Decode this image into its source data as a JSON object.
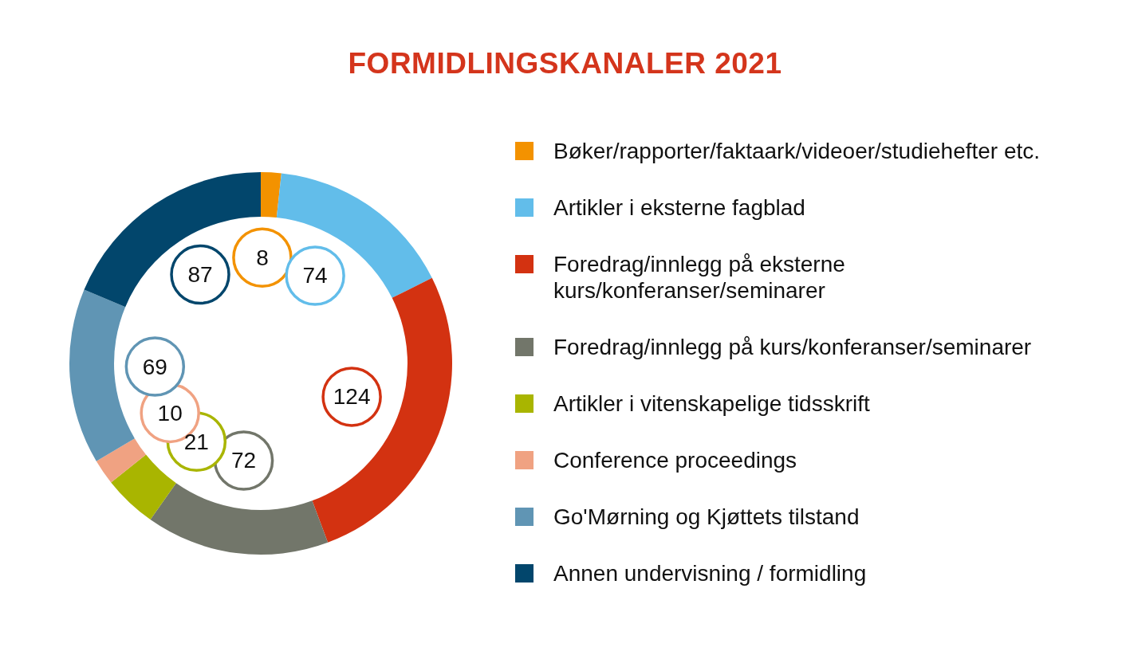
{
  "chart_data": {
    "type": "donut",
    "title": "FORMIDLINGSKANALER 2021",
    "categories": [
      "Bøker/rapporter/faktaark/videoer/studiehefter etc.",
      "Artikler i eksterne fagblad",
      "Foredrag/innlegg på eksterne kurs/konferanser/seminarer",
      "Foredrag/innlegg på kurs/konferanser/seminarer",
      "Artikler i vitenskapelige tidsskrift",
      "Conference proceedings",
      "Go'Mørning og Kjøttets tilstand",
      "Annen undervisning / formidling"
    ],
    "values": [
      8,
      74,
      124,
      72,
      21,
      10,
      69,
      87
    ],
    "colors": [
      "#f39200",
      "#62bdea",
      "#d33211",
      "#72766a",
      "#a9b500",
      "#f0a282",
      "#6095b4",
      "#02466c"
    ],
    "data_labels": true,
    "legend": "right"
  }
}
